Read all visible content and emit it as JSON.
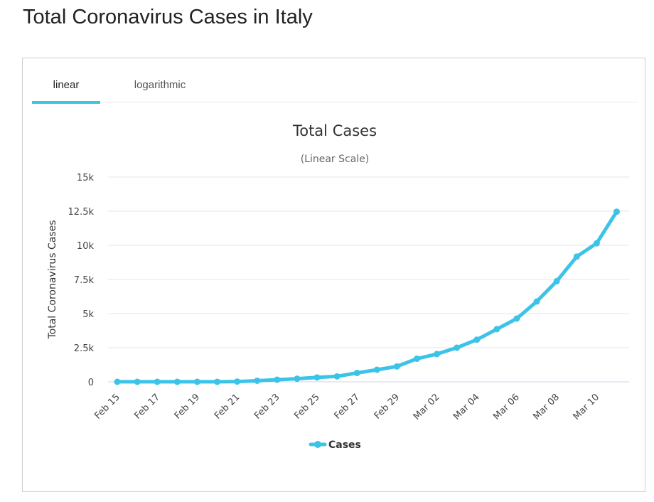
{
  "page": {
    "title": "Total Coronavirus Cases in Italy"
  },
  "tabs": [
    {
      "label": "linear",
      "active": true
    },
    {
      "label": "logarithmic",
      "active": false
    }
  ],
  "colors": {
    "series": "#3cc3e8",
    "grid": "#e6e6e6"
  },
  "chart_data": {
    "type": "line",
    "title": "Total Cases",
    "subtitle": "(Linear Scale)",
    "xlabel": "",
    "ylabel": "Total Coronavirus Cases",
    "ylim": [
      0,
      15000
    ],
    "yticks": [
      0,
      2500,
      5000,
      7500,
      10000,
      12500,
      15000
    ],
    "ytick_labels": [
      "0",
      "2.5k",
      "5k",
      "7.5k",
      "10k",
      "12.5k",
      "15k"
    ],
    "grid": true,
    "legend": "bottom-center",
    "x": [
      "Feb 15",
      "Feb 16",
      "Feb 17",
      "Feb 18",
      "Feb 19",
      "Feb 20",
      "Feb 21",
      "Feb 22",
      "Feb 23",
      "Feb 24",
      "Feb 25",
      "Feb 26",
      "Feb 27",
      "Feb 28",
      "Feb 29",
      "Mar 01",
      "Mar 02",
      "Mar 03",
      "Mar 04",
      "Mar 05",
      "Mar 06",
      "Mar 07",
      "Mar 08",
      "Mar 09",
      "Mar 10",
      "Mar 11"
    ],
    "x_tick_labels": [
      "Feb 15",
      "Feb 17",
      "Feb 19",
      "Feb 21",
      "Feb 23",
      "Feb 25",
      "Feb 27",
      "Feb 29",
      "Mar 02",
      "Mar 04",
      "Mar 06",
      "Mar 08",
      "Mar 10"
    ],
    "series": [
      {
        "name": "Cases",
        "values": [
          3,
          3,
          3,
          3,
          3,
          3,
          20,
          79,
          157,
          229,
          322,
          400,
          650,
          888,
          1128,
          1694,
          2036,
          2502,
          3089,
          3858,
          4636,
          5883,
          7375,
          9172,
          10149,
          12462
        ]
      }
    ]
  }
}
